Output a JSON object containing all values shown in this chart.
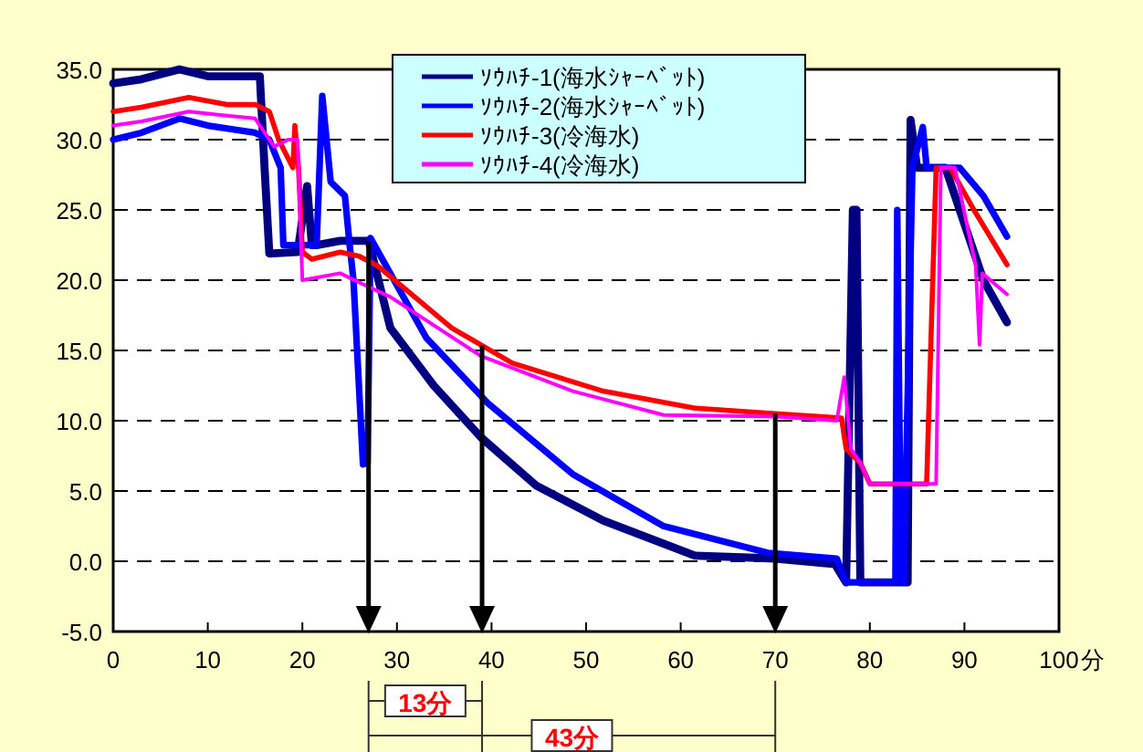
{
  "chart_data": {
    "type": "line",
    "xlabel": "分",
    "xlim": [
      0,
      100
    ],
    "xticks": [
      0,
      10,
      20,
      30,
      40,
      50,
      60,
      70,
      80,
      90,
      100
    ],
    "ylim": [
      -5,
      35
    ],
    "yticks": [
      {
        "value": -5,
        "label": "-5.0"
      },
      {
        "value": 0,
        "label": "0.0"
      },
      {
        "value": 5,
        "label": "5.0"
      },
      {
        "value": 10,
        "label": "10.0"
      },
      {
        "value": 15,
        "label": "15.0"
      },
      {
        "value": 20,
        "label": "20.0"
      },
      {
        "value": 25,
        "label": "25.0"
      },
      {
        "value": 30,
        "label": "30.0"
      },
      {
        "value": 35,
        "label": "35.0"
      }
    ],
    "grid": "y",
    "legend": "top",
    "line_style": "solid",
    "marker": "none",
    "series": [
      {
        "name": "ｿｳﾊﾁ-1(海水ｼｬｰﾍﾞｯﾄ)",
        "color": "#000080",
        "x": [
          0,
          3,
          7,
          10,
          13,
          15.5,
          16,
          16.5,
          19.5,
          20.5,
          21,
          21.5,
          24,
          27,
          29.3,
          33.9,
          38.9,
          44.7,
          51.8,
          61.5,
          70,
          76.3,
          77.5,
          78.2,
          78.6,
          79,
          84,
          84.3,
          85,
          88,
          90,
          92,
          94.5
        ],
        "values": [
          34,
          34.3,
          35,
          34.5,
          34.5,
          34.5,
          28,
          21.9,
          22,
          26.7,
          22.5,
          22.5,
          22.8,
          22.8,
          16.6,
          12.5,
          8.8,
          5.4,
          2.9,
          0.4,
          0.2,
          -0.2,
          -1.5,
          25,
          25,
          -1.5,
          -1.5,
          31.4,
          28,
          28,
          24,
          20,
          17
        ]
      },
      {
        "name": "ｿｳﾊﾁ-2(海水ｼｬｰﾍﾞｯﾄ)",
        "color": "#0000ff",
        "x": [
          0,
          3,
          7,
          10,
          15,
          16.5,
          17.7,
          18,
          21.5,
          22.1,
          23,
          24.5,
          25,
          25.4,
          26.4,
          26.9,
          27.2,
          33.1,
          39.7,
          48.6,
          58.2,
          69.2,
          76.5,
          77.5,
          82.7,
          82.9,
          83.3,
          83.6,
          84.5,
          85.6,
          86,
          89.5,
          92,
          94.5
        ],
        "values": [
          30,
          30.5,
          31.5,
          31,
          30.5,
          30,
          28,
          22.5,
          22.5,
          33.1,
          27,
          26,
          22.5,
          20,
          6.9,
          7,
          23,
          15.9,
          11.2,
          6.2,
          2.5,
          0.6,
          0.2,
          -1.5,
          -1.5,
          25,
          -1.5,
          -1.5,
          28,
          30.9,
          28,
          28,
          26,
          23.1
        ]
      },
      {
        "name": "ｿｳﾊﾁ-3(冷海水)",
        "color": "#ff0000",
        "x": [
          0,
          3,
          8,
          12,
          15,
          16.5,
          17.5,
          19,
          19.2,
          19.6,
          20,
          21,
          24,
          26,
          28,
          35.8,
          42.2,
          51.8,
          61.5,
          70,
          77,
          77.5,
          79,
          80,
          86,
          87,
          88.5,
          91,
          94.5
        ],
        "values": [
          32,
          32.3,
          33,
          32.5,
          32.5,
          32,
          30,
          28,
          31,
          28,
          22,
          21.5,
          22,
          21.7,
          21,
          16.6,
          14.1,
          12.1,
          10.9,
          10.5,
          10.2,
          8,
          7,
          5.5,
          5.5,
          28,
          28,
          25,
          21.1
        ]
      },
      {
        "name": "ｿｳﾊﾁ-4(冷海水)",
        "color": "#ff00ff",
        "x": [
          0,
          3,
          8,
          12,
          15,
          17,
          18.5,
          19.5,
          20,
          24,
          25.5,
          29.3,
          38.9,
          48.6,
          58.2,
          70,
          76.5,
          77.3,
          78,
          79,
          80,
          87,
          87.5,
          89,
          91.2,
          91.6,
          91.9,
          94.5
        ],
        "values": [
          31,
          31.3,
          32,
          31.7,
          31.5,
          29.5,
          30,
          30,
          20,
          20.5,
          20,
          18.8,
          14.6,
          12.1,
          10.4,
          10.3,
          10,
          13.1,
          8,
          7,
          5.5,
          5.5,
          28,
          28,
          21,
          15.4,
          20.5,
          19
        ]
      }
    ],
    "ref_lines": [
      {
        "axis": "x",
        "value": 27,
        "color": "#000000"
      },
      {
        "axis": "x",
        "value": 39,
        "color": "#000000"
      },
      {
        "axis": "x",
        "value": 70,
        "color": "#000000"
      }
    ],
    "annotations": [
      "13分",
      "43分"
    ]
  }
}
